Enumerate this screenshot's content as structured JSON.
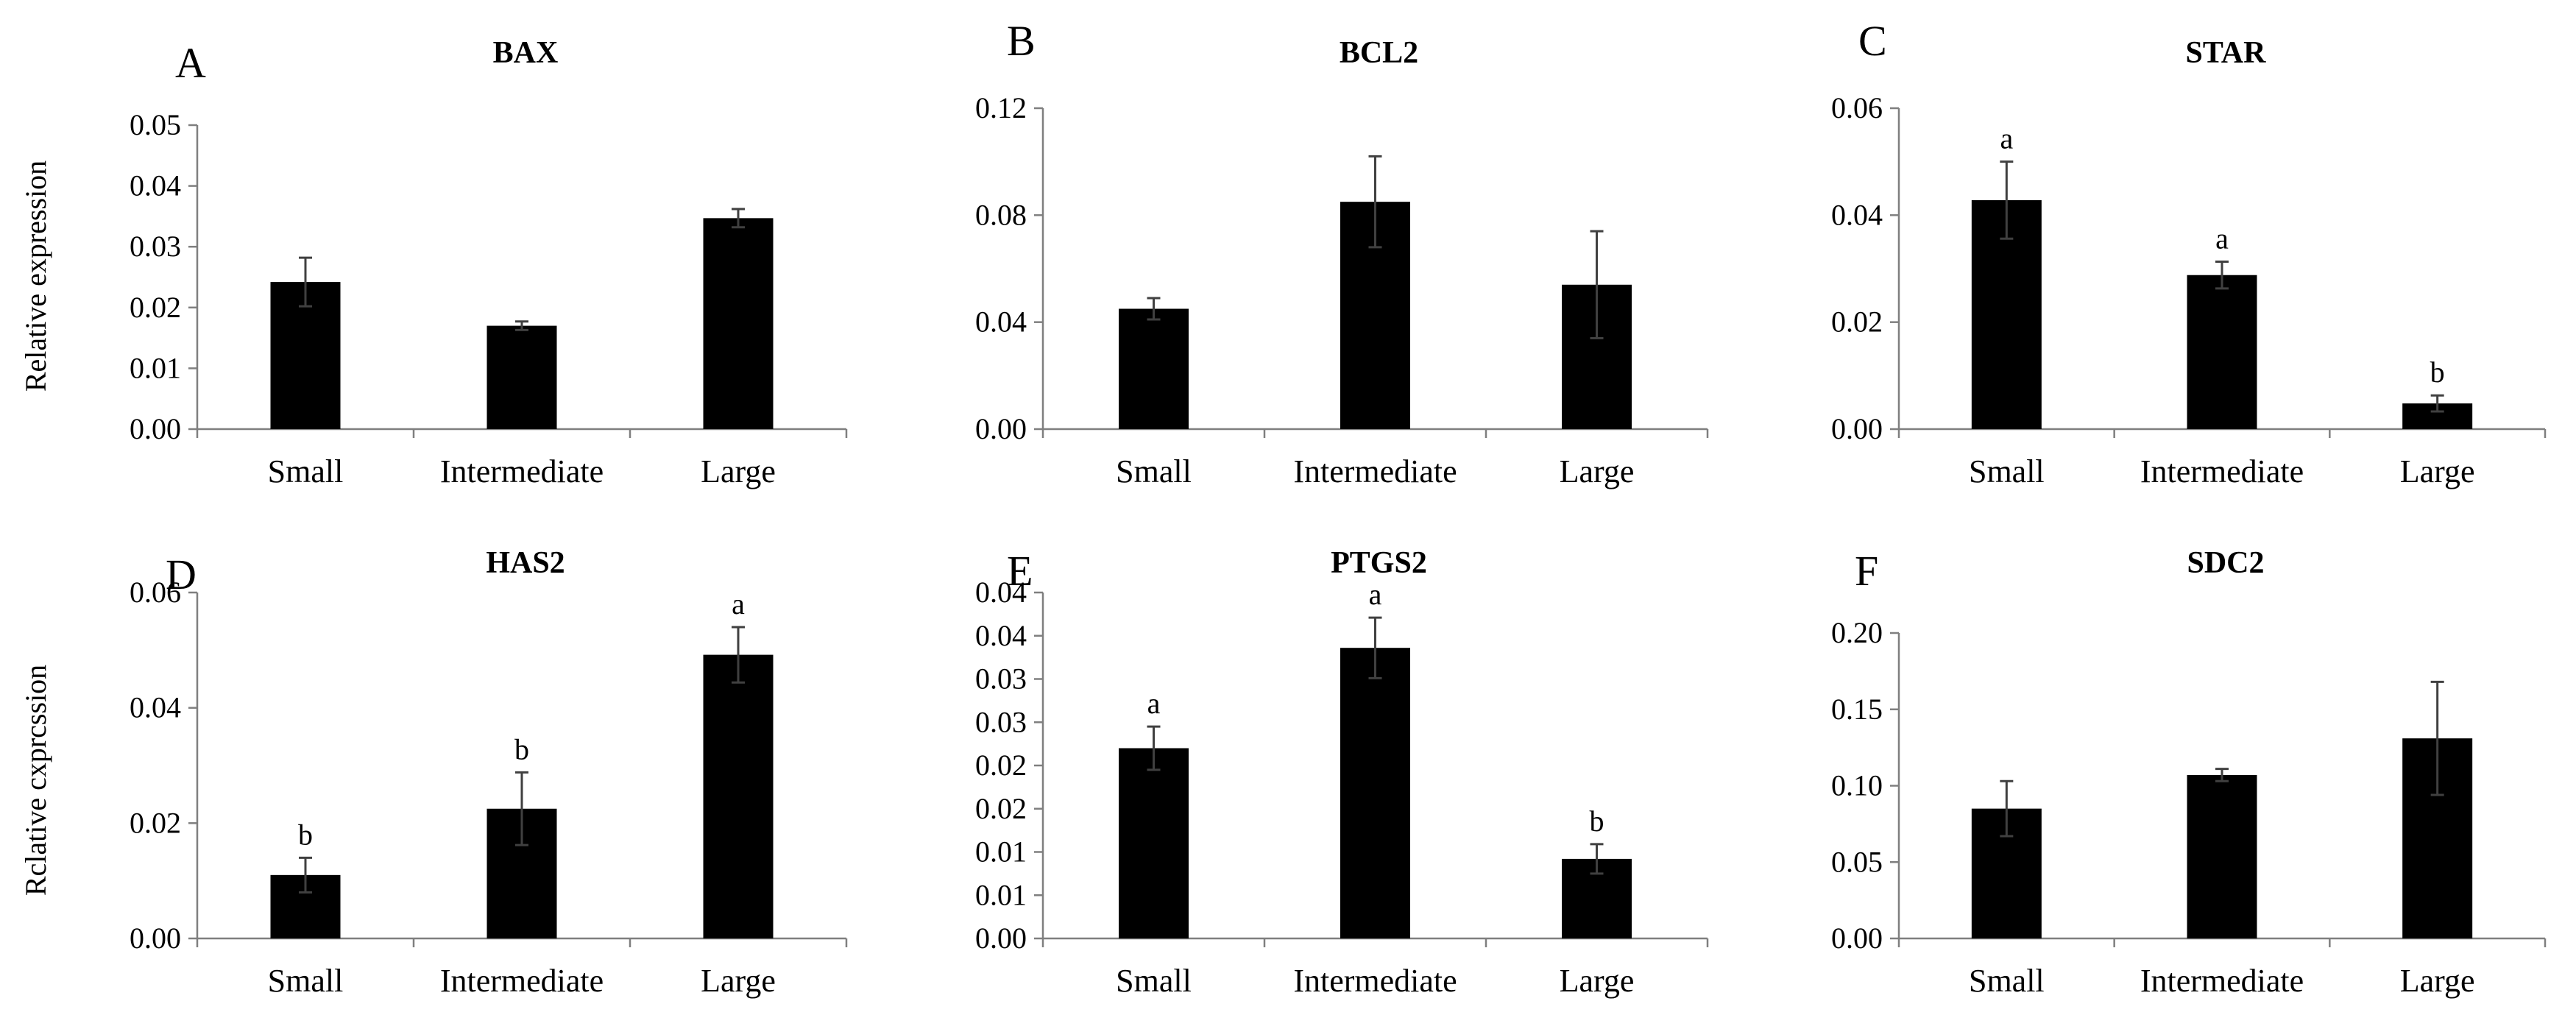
{
  "figure": {
    "y_axis_label": "Relative expression",
    "y_axis_label_lower": "Rclative cxprcssion"
  },
  "chart_data": [
    {
      "panel": "A",
      "type": "bar",
      "title": "BAX",
      "categories": [
        "Small",
        "Intermediate",
        "Large"
      ],
      "values": [
        0.0242,
        0.017,
        0.0347
      ],
      "errors": [
        0.004,
        0.0007,
        0.0015
      ],
      "significance": [
        "",
        "",
        ""
      ],
      "ylim": [
        0,
        0.05
      ],
      "ticks": [
        0,
        0.01,
        0.02,
        0.03,
        0.04,
        0.05
      ],
      "tick_labels": [
        "0.00",
        "0.01",
        "0.02",
        "0.03",
        "0.04",
        "0.05"
      ]
    },
    {
      "panel": "B",
      "type": "bar",
      "title": "BCL2",
      "categories": [
        "Small",
        "Intermediate",
        "Large"
      ],
      "values": [
        0.045,
        0.085,
        0.054
      ],
      "errors": [
        0.004,
        0.017,
        0.02
      ],
      "significance": [
        "",
        "",
        ""
      ],
      "ylim": [
        0,
        0.12
      ],
      "ticks": [
        0,
        0.04,
        0.08,
        0.12
      ],
      "tick_labels": [
        "0.00",
        "0.04",
        "0.08",
        "0.12"
      ]
    },
    {
      "panel": "C",
      "type": "bar",
      "title": "STAR",
      "categories": [
        "Small",
        "Intermediate",
        "Large"
      ],
      "values": [
        0.0428,
        0.0288,
        0.0048
      ],
      "errors": [
        0.0072,
        0.0025,
        0.0015
      ],
      "significance": [
        "a",
        "a",
        "b"
      ],
      "ylim": [
        0,
        0.06
      ],
      "ticks": [
        0,
        0.02,
        0.04,
        0.06
      ],
      "tick_labels": [
        "0.00",
        "0.02",
        "0.04",
        "0.06"
      ]
    },
    {
      "panel": "D",
      "type": "bar",
      "title": "HAS2",
      "categories": [
        "Small",
        "Intermediate",
        "Large"
      ],
      "values": [
        0.011,
        0.0225,
        0.0492
      ],
      "errors": [
        0.003,
        0.0063,
        0.0048
      ],
      "significance": [
        "b",
        "b",
        "a"
      ],
      "ylim": [
        0,
        0.06
      ],
      "ticks": [
        0,
        0.02,
        0.04,
        0.06
      ],
      "tick_labels": [
        "0.00",
        "0.02",
        "0.04",
        "0.06"
      ]
    },
    {
      "panel": "E",
      "type": "bar",
      "title": "PTGS2",
      "categories": [
        "Small",
        "Intermediate",
        "Large"
      ],
      "values": [
        0.022,
        0.0336,
        0.0092
      ],
      "errors": [
        0.0025,
        0.0035,
        0.0017
      ],
      "significance": [
        "a",
        "a",
        "b"
      ],
      "ylim": [
        0,
        0.04
      ],
      "ticks": [
        0,
        0.005,
        0.01,
        0.015,
        0.02,
        0.025,
        0.03,
        0.035,
        0.04
      ],
      "tick_labels": [
        "0.00",
        "0.01",
        "0.01",
        "0.02",
        "0.02",
        "0.03",
        "0.03",
        "0.04",
        "0.04"
      ]
    },
    {
      "panel": "F",
      "type": "bar",
      "title": "SDC2",
      "categories": [
        "Small",
        "Intermediate",
        "Large"
      ],
      "values": [
        0.085,
        0.107,
        0.131
      ],
      "errors": [
        0.018,
        0.004,
        0.037
      ],
      "significance": [
        "",
        "",
        ""
      ],
      "ylim": [
        0,
        0.2
      ],
      "ticks": [
        0,
        0.05,
        0.1,
        0.15,
        0.2
      ],
      "tick_labels": [
        "0.00",
        "0.05",
        "0.10",
        "0.15",
        "0.20"
      ]
    }
  ]
}
